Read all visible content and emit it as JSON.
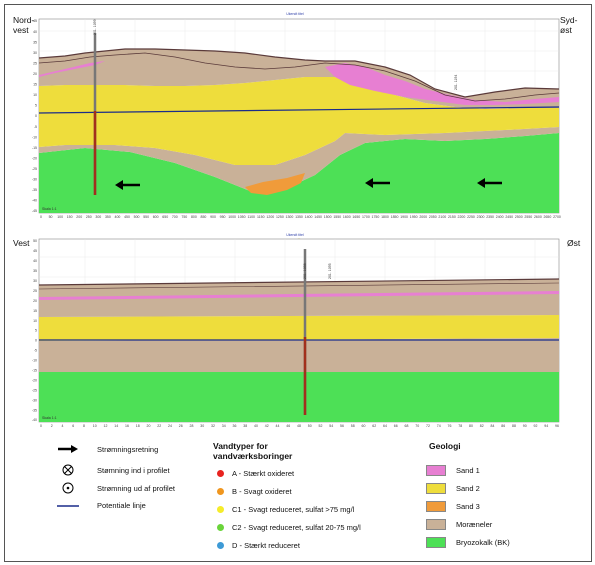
{
  "profile1": {
    "title": "Ukendt titel",
    "corner_left": [
      "Nord-",
      "vest"
    ],
    "corner_right": [
      "Syd-",
      "øst"
    ],
    "scale_label": "Skala 1:1",
    "y_labels": [
      "45",
      "40",
      "35",
      "30",
      "25",
      "20",
      "15",
      "10",
      "5",
      "0",
      "-5",
      "-10",
      "-15",
      "-20",
      "-25",
      "-30",
      "-35",
      "-40",
      "-45"
    ],
    "x_labels": [
      "0",
      "50",
      "100",
      "150",
      "200",
      "250",
      "300",
      "350",
      "400",
      "450",
      "500",
      "550",
      "600",
      "650",
      "700",
      "750",
      "800",
      "850",
      "900",
      "950",
      "1000",
      "1050",
      "1100",
      "1150",
      "1200",
      "1250",
      "1300",
      "1350",
      "1400",
      "1450",
      "1500",
      "1550",
      "1600",
      "1650",
      "1700",
      "1750",
      "1800",
      "1850",
      "1900",
      "1950",
      "2000",
      "2050",
      "2100",
      "2150",
      "2200",
      "2250",
      "2300",
      "2350",
      "2400",
      "2450",
      "2500",
      "2550",
      "2600",
      "2650",
      "2700"
    ],
    "well_labels": [
      "201. 1099",
      "201. 1194"
    ]
  },
  "profile2": {
    "title": "Ukendt titel",
    "corner_left": [
      "Vest"
    ],
    "corner_right": [
      "Øst"
    ],
    "scale_label": "Skala 1:1",
    "y_labels": [
      "50",
      "45",
      "40",
      "35",
      "30",
      "25",
      "20",
      "15",
      "10",
      "5",
      "0",
      "-5",
      "-10",
      "-15",
      "-20",
      "-25",
      "-30",
      "-35",
      "-40"
    ],
    "x_labels": [
      "0",
      "2",
      "4",
      "6",
      "8",
      "10",
      "12",
      "14",
      "16",
      "18",
      "20",
      "22",
      "24",
      "26",
      "28",
      "30",
      "32",
      "34",
      "36",
      "38",
      "40",
      "42",
      "44",
      "46",
      "48",
      "50",
      "52",
      "54",
      "56",
      "58",
      "60",
      "62",
      "64",
      "66",
      "68",
      "70",
      "72",
      "74",
      "76",
      "78",
      "80",
      "82",
      "84",
      "86",
      "88",
      "90",
      "92",
      "94",
      "96"
    ],
    "well_labels": [
      "201. 1098",
      "201. 1095"
    ]
  },
  "legend_symbols": {
    "items": [
      {
        "icon": "arrow-icon",
        "label": "Strømningsretning"
      },
      {
        "icon": "circle-cross-icon",
        "label": "Stømning ind i profilet"
      },
      {
        "icon": "circle-dot-icon",
        "label": "Strømning ud af profilet"
      },
      {
        "icon": "potential-line-icon",
        "label": "Potentiale linje"
      }
    ]
  },
  "legend_water": {
    "heading": [
      "Vandtyper for",
      "vandværksboringer"
    ],
    "items": [
      {
        "color": "#e8231f",
        "label": "A - Stærkt oxideret"
      },
      {
        "color": "#f0961e",
        "label": "B - Svagt oxideret"
      },
      {
        "color": "#f5ec2a",
        "label": "C1 - Svagt reduceret, sulfat >75 mg/l"
      },
      {
        "color": "#6ad43a",
        "label": "C2 - Svagt reduceret, sulfat 20-75 mg/l"
      },
      {
        "color": "#3d9ad6",
        "label": "D - Stærkt reduceret"
      }
    ]
  },
  "legend_geology": {
    "heading": "Geologi",
    "items": [
      {
        "color": "#e77fd2",
        "label": "Sand 1"
      },
      {
        "color": "#eedd3c",
        "label": "Sand 2"
      },
      {
        "color": "#f09b3a",
        "label": "Sand 3"
      },
      {
        "color": "#c9b198",
        "label": "Moræneler"
      },
      {
        "color": "#4de056",
        "label": "Bryozokalk (BK)"
      }
    ]
  }
}
